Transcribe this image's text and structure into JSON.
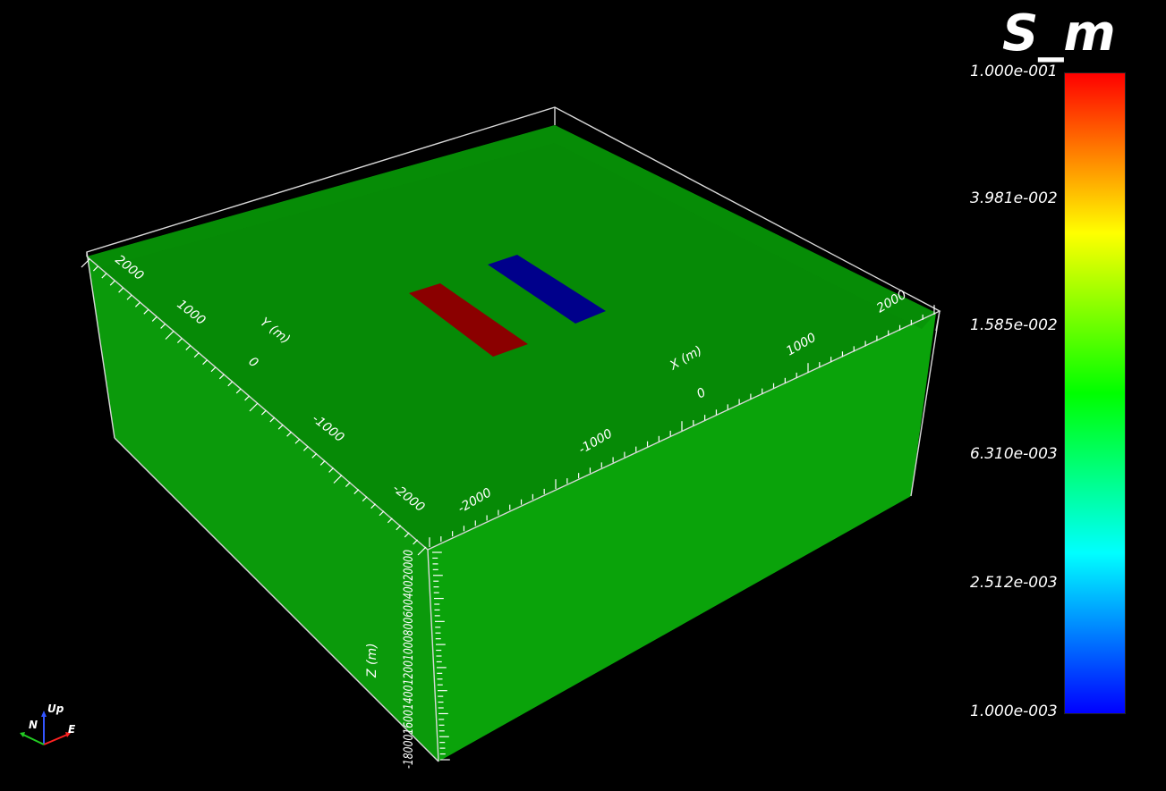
{
  "scene": {
    "background": "#000000",
    "model_color_top": "#068706",
    "model_color_side_front": "#099e09",
    "model_color_side_left": "#0a9a0a",
    "box_outline_color": "#dcdcdc"
  },
  "scalar_bar": {
    "title": "S_m",
    "labels": [
      "1.000e-001",
      "3.981e-002",
      "1.585e-002",
      "6.310e-003",
      "2.512e-003",
      "1.000e-003"
    ],
    "colors": [
      "#ff0000",
      "#ffff00",
      "#00ff00",
      "#00ffff",
      "#0000ff"
    ]
  },
  "anomalies": {
    "conductor_color": "#8b0000",
    "resistor_color": "#00008b"
  },
  "axes": {
    "x_label": "X (m)",
    "y_label": "Y (m)",
    "z_label": "Z (m)",
    "x_ticks": [
      "-2000",
      "-1000",
      "0",
      "1000",
      "2000"
    ],
    "y_ticks": [
      "-2000",
      "-1000",
      "0",
      "1000",
      "2000"
    ],
    "z_ticks": [
      "0",
      "200",
      "400",
      "600",
      "800",
      "1000",
      "1200",
      "1400",
      "1600",
      "1800"
    ],
    "z_ticks_text": "-18000160014001200100080060040020000"
  },
  "orientation": {
    "up_label": "Up",
    "north_label": "N",
    "east_label": "E"
  }
}
